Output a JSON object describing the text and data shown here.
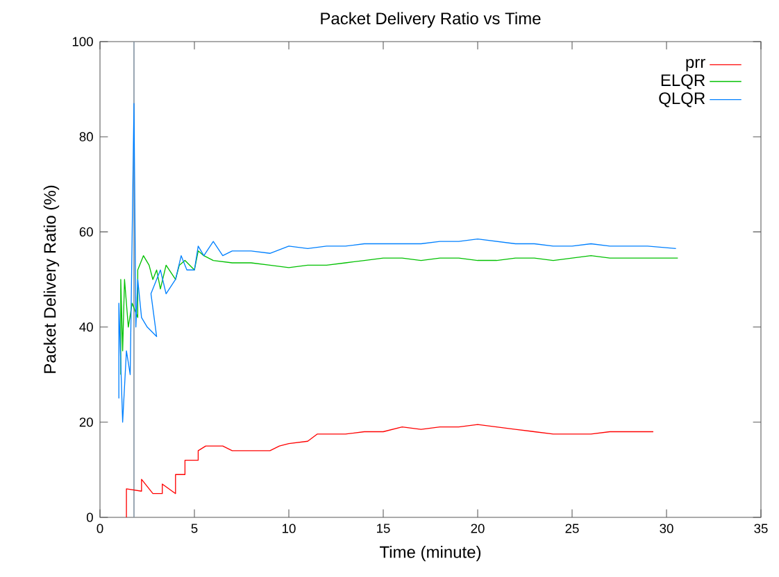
{
  "chart_data": {
    "type": "line",
    "title": "Packet Delivery Ratio vs Time",
    "xlabel": "Time (minute)",
    "ylabel": "Packet Delivery Ratio (%)",
    "xlim": [
      0,
      35
    ],
    "ylim": [
      0,
      100
    ],
    "xticks": [
      0,
      5,
      10,
      15,
      20,
      25,
      30,
      35
    ],
    "yticks": [
      0,
      20,
      40,
      60,
      80,
      100
    ],
    "grid": false,
    "legend": "top right",
    "ref_lines": [
      {
        "axis": "x",
        "value": 1.8,
        "color": "#8090a0"
      }
    ],
    "series": [
      {
        "name": "prr",
        "color": "#ff0000",
        "x": [
          1.4,
          1.4,
          2.2,
          2.2,
          2.8,
          3.3,
          3.3,
          4.0,
          4.0,
          4.5,
          4.5,
          5.2,
          5.2,
          5.6,
          6.5,
          7,
          8,
          9,
          9.5,
          10,
          11,
          11.5,
          13,
          14,
          15,
          16,
          17,
          18,
          19,
          20,
          21,
          22,
          23,
          24,
          25,
          26,
          27,
          28,
          29.3
        ],
        "values": [
          0,
          6,
          5.5,
          8,
          5,
          5,
          7,
          5,
          9,
          9,
          12,
          12,
          14,
          15,
          15,
          14,
          14,
          14,
          15,
          15.5,
          16,
          17.5,
          17.5,
          18,
          18,
          19,
          18.5,
          19,
          19,
          19.5,
          19,
          18.5,
          18,
          17.5,
          17.5,
          17.5,
          18,
          18,
          18
        ]
      },
      {
        "name": "ELQR",
        "color": "#00c000",
        "x": [
          1.1,
          1.1,
          1.2,
          1.3,
          1.5,
          1.7,
          2.0,
          2.0,
          2.3,
          2.6,
          2.8,
          3.0,
          3.2,
          3.5,
          4.0,
          4.2,
          4.5,
          5.0,
          5.2,
          5.5,
          6,
          7,
          8,
          9,
          10,
          11,
          12,
          13,
          14,
          15,
          16,
          17,
          18,
          19,
          20,
          21,
          22,
          23,
          24,
          25,
          26,
          27,
          28,
          29,
          30.6
        ],
        "values": [
          30,
          50,
          35,
          50,
          40,
          45,
          42,
          52,
          55,
          53,
          50,
          52,
          48,
          53,
          50,
          53,
          54,
          52,
          56,
          55,
          54,
          53.5,
          53.5,
          53,
          52.5,
          53,
          53,
          53.5,
          54,
          54.5,
          54.5,
          54,
          54.5,
          54.5,
          54,
          54,
          54.5,
          54.5,
          54,
          54.5,
          55,
          54.5,
          54.5,
          54.5,
          54.5
        ]
      },
      {
        "name": "QLQR",
        "color": "#0080ff",
        "x": [
          1.0,
          1.0,
          1.2,
          1.4,
          1.6,
          1.8,
          1.9,
          2.0,
          2.2,
          2.5,
          3.0,
          2.7,
          3.2,
          3.5,
          4.0,
          4.3,
          4.6,
          5.0,
          5.2,
          5.5,
          6,
          6.5,
          7,
          8,
          9,
          10,
          11,
          12,
          13,
          14,
          15,
          16,
          17,
          18,
          19,
          20,
          21,
          22,
          23,
          24,
          25,
          26,
          27,
          28,
          29,
          30.5
        ],
        "values": [
          25,
          45,
          20,
          35,
          30,
          87,
          40,
          50,
          42,
          40,
          38,
          47,
          52,
          47,
          50,
          55,
          52,
          52,
          57,
          55,
          58,
          55,
          56,
          56,
          55.5,
          57,
          56.5,
          57,
          57,
          57.5,
          57.5,
          57.5,
          57.5,
          58,
          58,
          58.5,
          58,
          57.5,
          57.5,
          57,
          57,
          57.5,
          57,
          57,
          57,
          56.5
        ]
      }
    ]
  }
}
